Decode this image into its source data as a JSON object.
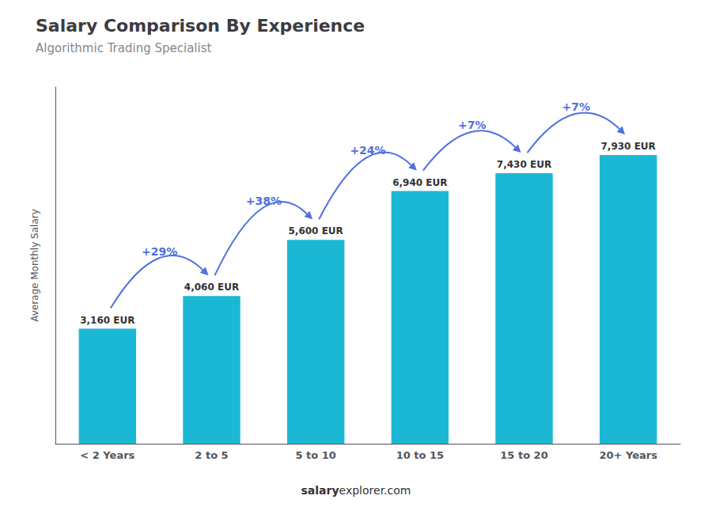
{
  "chart_data": {
    "type": "bar",
    "title": "Salary Comparison By Experience",
    "subtitle": "Algorithmic Trading Specialist",
    "ylabel": "Average Monthly Salary",
    "categories": [
      "< 2 Years",
      "2 to 5",
      "5 to 10",
      "10 to 15",
      "15 to 20",
      "20+ Years"
    ],
    "values": [
      3160,
      4060,
      5600,
      6940,
      7430,
      7930
    ],
    "value_labels": [
      "3,160 EUR",
      "4,060 EUR",
      "5,600 EUR",
      "6,940 EUR",
      "7,430 EUR",
      "7,930 EUR"
    ],
    "data_labels": true,
    "color": "#1ab8d4",
    "ylim": [
      0,
      9800
    ],
    "tick_labels": "x",
    "grid": false,
    "annotations": [
      "+29%",
      "+38%",
      "+24%",
      "+7%",
      "+7%"
    ],
    "footer": [
      "salary",
      "explorer.com"
    ]
  }
}
